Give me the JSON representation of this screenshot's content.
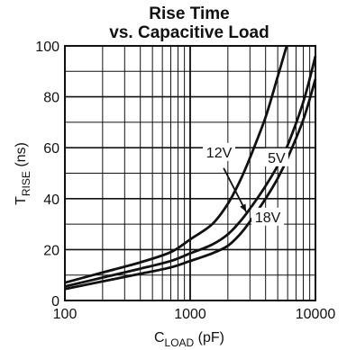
{
  "chart_data": {
    "type": "line",
    "title_line1": "Rise Time",
    "title_line2": "vs. Capacitive Load",
    "xlabel": {
      "main": "C",
      "sub": "LOAD",
      "unit": " (pF)"
    },
    "ylabel": {
      "main": "T",
      "sub": "RISE",
      "unit": " (ns)"
    },
    "x_scale": "log",
    "xlim": [
      100,
      10000
    ],
    "ylim": [
      0,
      100
    ],
    "x_ticks": [
      100,
      1000,
      10000
    ],
    "x_tick_labels": [
      "100",
      "1000",
      "10000"
    ],
    "y_ticks": [
      0,
      20,
      40,
      60,
      80,
      100
    ],
    "y_tick_labels": [
      "0",
      "20",
      "40",
      "60",
      "80",
      "100"
    ],
    "grid": true,
    "series": [
      {
        "name": "5V",
        "x": [
          100,
          200,
          400,
          700,
          1000,
          1500,
          2000,
          2500,
          3000,
          4000,
          5000,
          5900
        ],
        "y": [
          7,
          11,
          15,
          19,
          24,
          30,
          38,
          47,
          56,
          72,
          88,
          100
        ]
      },
      {
        "name": "12V",
        "x": [
          100,
          200,
          400,
          700,
          1000,
          1500,
          2000,
          2500,
          3000,
          4000,
          5000,
          6000,
          8000,
          10000
        ],
        "y": [
          5.5,
          9,
          12.5,
          15.5,
          18.5,
          22,
          26,
          31,
          36,
          45,
          53,
          61,
          78,
          96
        ]
      },
      {
        "name": "18V",
        "x": [
          100,
          200,
          400,
          700,
          1000,
          1500,
          2000,
          2500,
          3000,
          4000,
          5000,
          6000,
          8000,
          10000
        ],
        "y": [
          4.5,
          7.5,
          10.5,
          13,
          15.5,
          18.5,
          21.5,
          26,
          31,
          40,
          48,
          56,
          71,
          87
        ]
      }
    ],
    "annotations": [
      {
        "text": "5V",
        "series": "5V"
      },
      {
        "text": "12V",
        "series": "12V"
      },
      {
        "text": "18V",
        "series": "18V"
      }
    ]
  }
}
